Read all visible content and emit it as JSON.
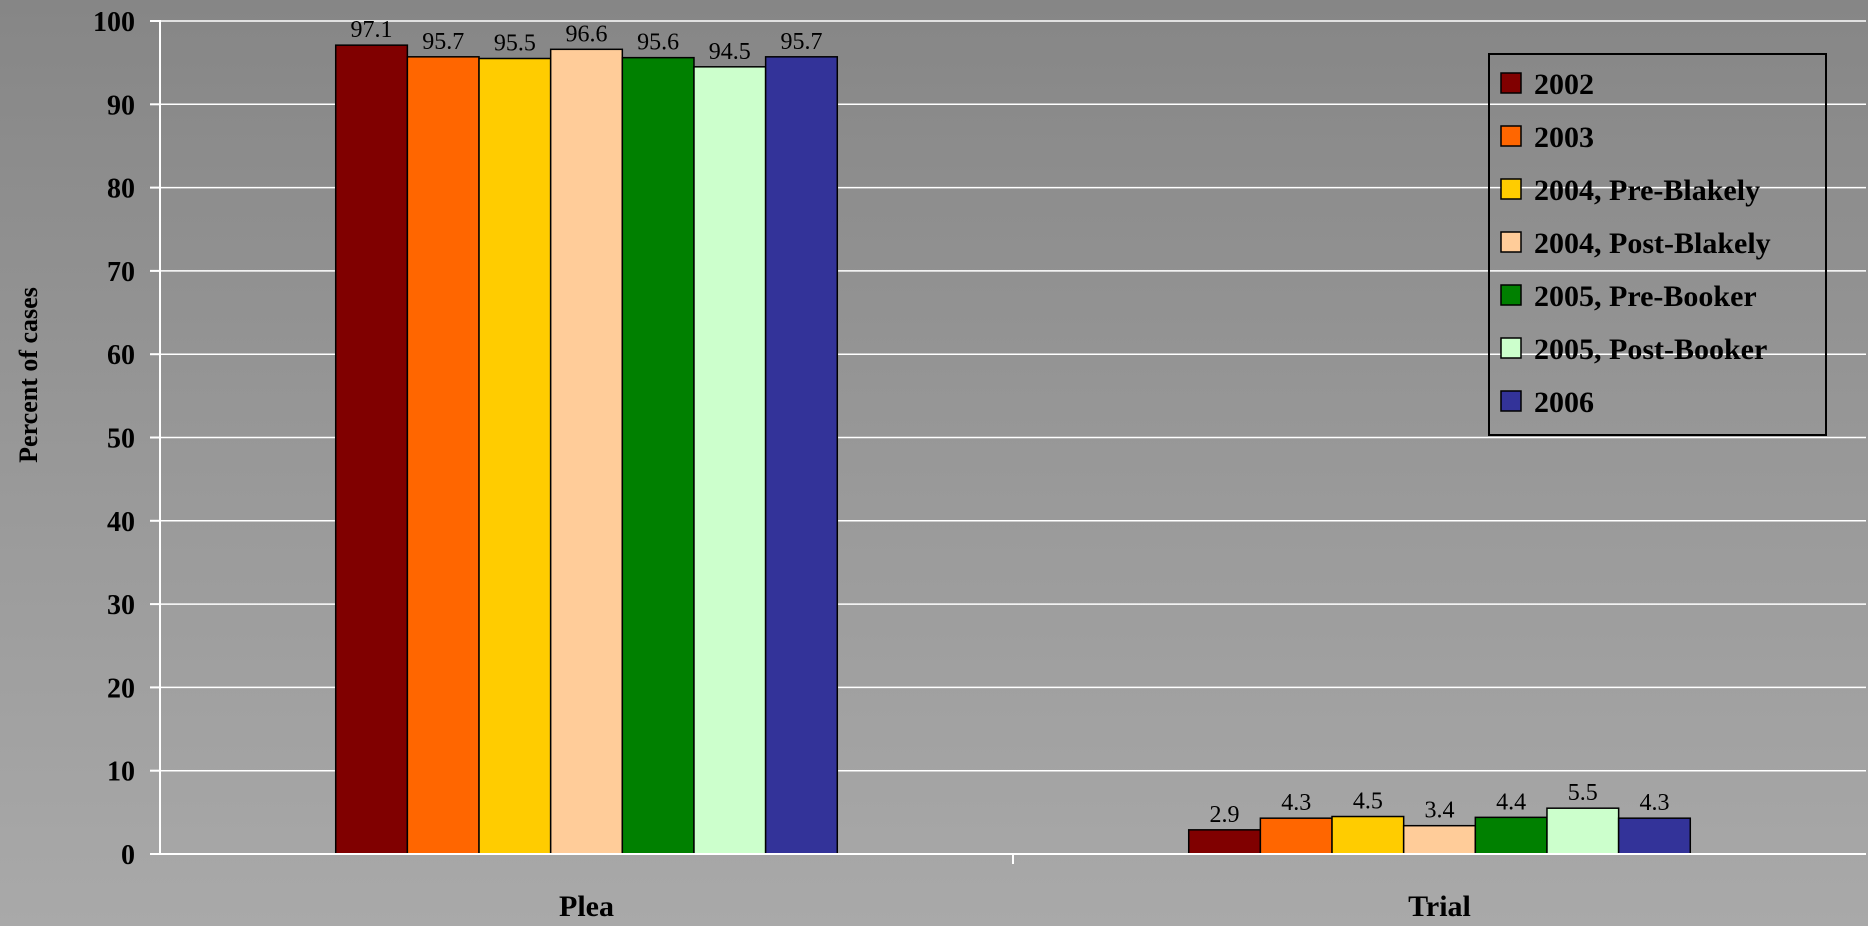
{
  "chart_data": {
    "type": "bar",
    "title": "",
    "xlabel": "",
    "ylabel": "Percent of cases",
    "ylim": [
      0,
      100
    ],
    "yticks": [
      0,
      10,
      20,
      30,
      40,
      50,
      60,
      70,
      80,
      90,
      100
    ],
    "categories": [
      "Plea",
      "Trial"
    ],
    "grid": true,
    "legend_position": "top-right",
    "series": [
      {
        "name": "2002",
        "color": "#800000",
        "values": [
          97.1,
          2.9
        ]
      },
      {
        "name": "2003",
        "color": "#ff6600",
        "values": [
          95.7,
          4.3
        ]
      },
      {
        "name": "2004, Pre-Blakely",
        "color": "#ffcc00",
        "values": [
          95.5,
          4.5
        ]
      },
      {
        "name": "2004, Post-Blakely",
        "color": "#ffcc99",
        "values": [
          96.6,
          3.4
        ]
      },
      {
        "name": "2005, Pre-Booker",
        "color": "#008000",
        "values": [
          95.6,
          4.4
        ]
      },
      {
        "name": "2005, Post-Booker",
        "color": "#ccffcc",
        "values": [
          94.5,
          5.5
        ]
      },
      {
        "name": "2006",
        "color": "#333399",
        "values": [
          95.7,
          4.3
        ]
      }
    ]
  }
}
